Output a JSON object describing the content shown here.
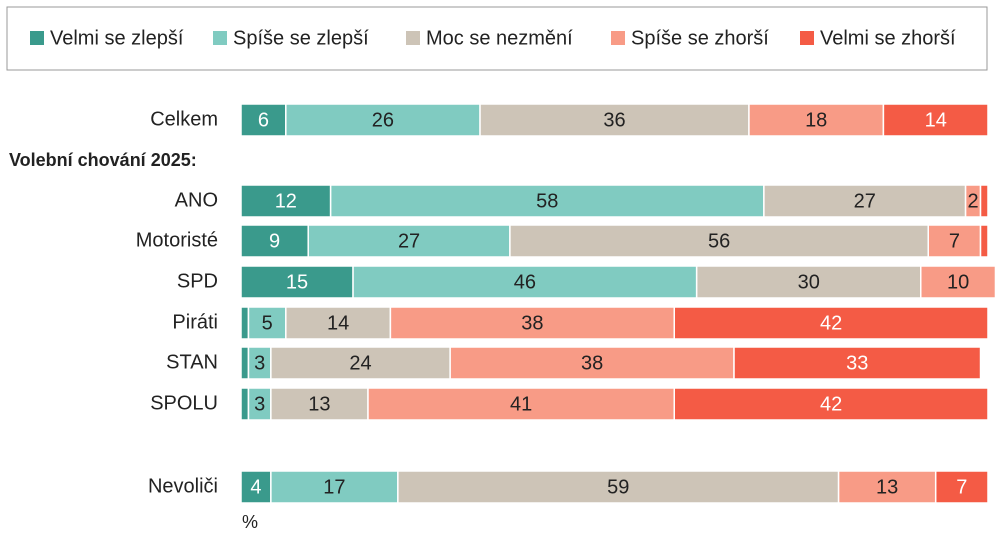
{
  "chart_data": {
    "type": "stacked_bar_horizontal",
    "categories": [
      "Celkem",
      "ANO",
      "Motoristé",
      "SPD",
      "Piráti",
      "STAN",
      "SPOLU",
      "Nevoliči"
    ],
    "group_label": "Volební chování 2025:",
    "unit_label": "%",
    "xlim": [
      0,
      100
    ],
    "legend": "top",
    "series": [
      {
        "name": "Velmi se zlepší",
        "color": "#3a9a8c",
        "label_color": "#ffffff",
        "values": [
          6,
          12,
          9,
          15,
          1,
          1,
          1,
          4
        ]
      },
      {
        "name": "Spíše se zlepší",
        "color": "#80cbc1",
        "label_color": "#222222",
        "values": [
          26,
          58,
          27,
          46,
          5,
          3,
          3,
          17
        ]
      },
      {
        "name": "Moc se nezmění",
        "color": "#cdc4b7",
        "label_color": "#222222",
        "values": [
          36,
          27,
          56,
          30,
          14,
          24,
          13,
          59
        ]
      },
      {
        "name": "Spíše se zhorší",
        "color": "#f89b86",
        "label_color": "#222222",
        "values": [
          18,
          2,
          7,
          10,
          38,
          38,
          41,
          13
        ]
      },
      {
        "name": "Velmi se zhorší",
        "color": "#f45b45",
        "label_color": "#ffffff",
        "values": [
          14,
          1,
          1,
          0,
          42,
          33,
          42,
          7
        ]
      }
    ]
  }
}
